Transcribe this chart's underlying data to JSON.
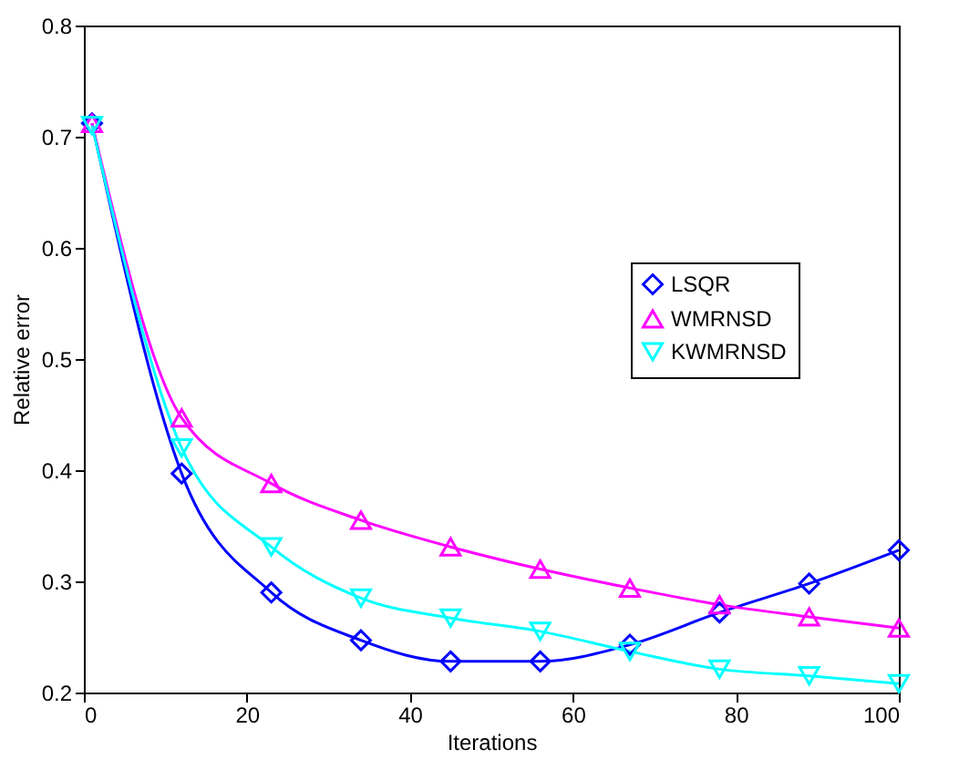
{
  "chart_data": {
    "type": "line",
    "xlabel": "Iterations",
    "ylabel": "Relative error",
    "xlim": [
      0,
      100
    ],
    "ylim": [
      0.2,
      0.8
    ],
    "xticks": [
      0,
      20,
      40,
      60,
      80,
      100
    ],
    "yticks": [
      0.2,
      0.3,
      0.4,
      0.5,
      0.6,
      0.7,
      0.8
    ],
    "grid": false,
    "legend": "right",
    "line_style": "solid",
    "x": [
      1,
      12,
      23,
      34,
      45,
      56,
      67,
      78,
      89,
      100
    ],
    "series": [
      {
        "name": "LSQR",
        "color": "#0000ff",
        "marker": "diamond",
        "values": [
          0.712,
          0.397,
          0.29,
          0.247,
          0.228,
          0.228,
          0.243,
          0.272,
          0.298,
          0.328
        ]
      },
      {
        "name": "WMRNSD",
        "color": "#ff00ff",
        "marker": "triangle",
        "values": [
          0.712,
          0.447,
          0.388,
          0.355,
          0.331,
          0.311,
          0.294,
          0.279,
          0.268,
          0.258
        ]
      },
      {
        "name": "KWMRNSD",
        "color": "#00ffff",
        "marker": "triangle-down",
        "values": [
          0.71,
          0.42,
          0.331,
          0.285,
          0.267,
          0.255,
          0.237,
          0.221,
          0.215,
          0.208
        ]
      }
    ]
  }
}
